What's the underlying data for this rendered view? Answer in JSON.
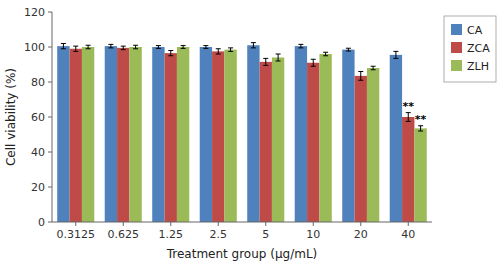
{
  "chart_data": {
    "type": "bar",
    "xlabel": "Treatment group (μg/mL)",
    "ylabel": "Cell viability (%)",
    "categories": [
      "0.3125",
      "0.625",
      "1.25",
      "2.5",
      "5",
      "10",
      "20",
      "40"
    ],
    "series": [
      {
        "name": "CA",
        "color": "#4f81bd",
        "values": [
          100.5,
          100.5,
          100.0,
          100.0,
          101.0,
          100.5,
          98.5,
          95.5
        ],
        "error": [
          1.5,
          1.0,
          0.8,
          0.8,
          1.5,
          1.0,
          0.8,
          2.0
        ]
      },
      {
        "name": "ZCA",
        "color": "#be4b48",
        "values": [
          99.0,
          99.5,
          96.5,
          97.5,
          91.5,
          91.0,
          83.5,
          60.0
        ],
        "error": [
          1.5,
          1.0,
          1.5,
          1.5,
          2.0,
          2.0,
          2.5,
          2.5
        ]
      },
      {
        "name": "ZLH",
        "color": "#9bbb59",
        "values": [
          100.0,
          100.0,
          100.0,
          98.5,
          94.0,
          96.0,
          88.0,
          53.5
        ],
        "error": [
          1.0,
          1.0,
          0.8,
          1.0,
          2.0,
          1.0,
          1.0,
          1.5
        ]
      }
    ],
    "annotations": [
      {
        "text": "**",
        "category": "40",
        "series": "ZCA"
      },
      {
        "text": "**",
        "category": "40",
        "series": "ZLH"
      }
    ],
    "ylim": [
      0,
      120
    ],
    "yticks": [
      0,
      20,
      40,
      60,
      80,
      100,
      120
    ],
    "grid": false,
    "legend": "right"
  }
}
